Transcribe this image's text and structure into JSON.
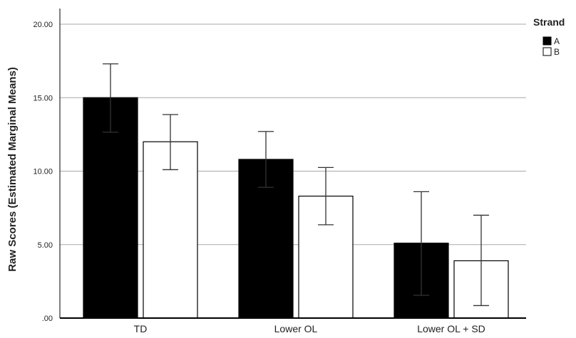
{
  "chart_data": {
    "type": "bar",
    "ylabel": "Raw Scores (Estimated Marginal Means)",
    "xlabel": "",
    "categories": [
      "TD",
      "Lower OL",
      "Lower OL + SD"
    ],
    "ylim": [
      0,
      20
    ],
    "yticks": [
      0,
      5,
      10,
      15,
      20
    ],
    "ytick_labels": [
      ".00",
      "5.00",
      "10.00",
      "15.00",
      "20.00"
    ],
    "grid": true,
    "legend": {
      "title": "Strand",
      "position": "top-right"
    },
    "series": [
      {
        "name": "A",
        "color": "#000000",
        "values": [
          15.0,
          10.8,
          5.1
        ],
        "err_low": [
          12.65,
          8.9,
          1.55
        ],
        "err_high": [
          17.3,
          12.7,
          8.6
        ]
      },
      {
        "name": "B",
        "color": "#ffffff",
        "values": [
          12.0,
          8.3,
          3.9
        ],
        "err_low": [
          10.1,
          6.35,
          0.85
        ],
        "err_high": [
          13.85,
          10.25,
          7.0
        ]
      }
    ]
  }
}
